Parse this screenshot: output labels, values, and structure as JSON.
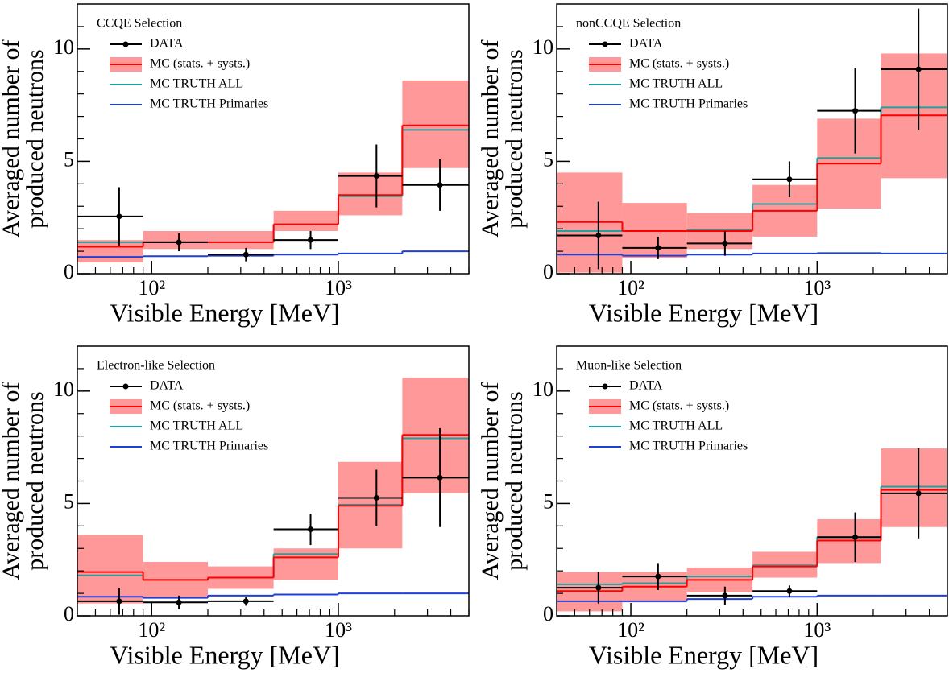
{
  "chart_data": [
    {
      "type": "step",
      "title": "CCQE Selection",
      "xlabel": "Visible Energy [MeV]",
      "ylabel": [
        "Averaged number of",
        "produced neutrons"
      ],
      "xscale": "log",
      "xlim": [
        40,
        5000
      ],
      "ylim": [
        0,
        12
      ],
      "xticks": [
        {
          "value": 100,
          "label": "10²"
        },
        {
          "value": 1000,
          "label": "10³"
        }
      ],
      "xminorticks": [
        50,
        60,
        70,
        80,
        90,
        200,
        300,
        400,
        500,
        600,
        700,
        800,
        900,
        2000,
        3000,
        4000,
        5000
      ],
      "yticks": [
        0,
        5,
        10
      ],
      "yminorticks": [
        1,
        2,
        3,
        4,
        6,
        7,
        8,
        9,
        11
      ],
      "legend": "upper left",
      "bins": [
        40,
        90,
        200,
        450,
        1000,
        2200,
        5000
      ],
      "x": [
        67,
        140,
        320,
        710,
        1600,
        3500
      ],
      "series": [
        {
          "name": "DATA",
          "color": "#000000",
          "values": [
            2.55,
            1.4,
            0.85,
            1.5,
            4.35,
            3.95
          ],
          "errors": [
            1.3,
            0.4,
            0.3,
            0.4,
            1.4,
            1.15
          ]
        },
        {
          "name": "MC (stats. + systs.)",
          "color": "#ff0000",
          "band_color": "#ff9999",
          "values": [
            1.2,
            1.4,
            1.4,
            2.2,
            3.5,
            6.6
          ],
          "band_low": [
            0.5,
            1.1,
            1.1,
            1.9,
            2.6,
            4.7
          ],
          "band_high": [
            1.5,
            1.9,
            1.9,
            2.8,
            4.5,
            8.6
          ]
        },
        {
          "name": "MC TRUTH ALL",
          "color": "#20a0a0",
          "values": [
            1.4,
            1.4,
            1.4,
            2.2,
            3.45,
            6.4
          ]
        },
        {
          "name": "MC TRUTH Primaries",
          "color": "#1f3fd8",
          "values": [
            0.75,
            0.78,
            0.8,
            0.85,
            0.9,
            1.0
          ]
        }
      ]
    },
    {
      "type": "step",
      "title": "nonCCQE Selection",
      "xlabel": "Visible Energy [MeV]",
      "ylabel": [
        "Averaged number of",
        "produced neutrons"
      ],
      "xscale": "log",
      "xlim": [
        40,
        5000
      ],
      "ylim": [
        0,
        12
      ],
      "xticks": [
        {
          "value": 100,
          "label": "10²"
        },
        {
          "value": 1000,
          "label": "10³"
        }
      ],
      "xminorticks": [
        50,
        60,
        70,
        80,
        90,
        200,
        300,
        400,
        500,
        600,
        700,
        800,
        900,
        2000,
        3000,
        4000,
        5000
      ],
      "yticks": [
        0,
        5,
        10
      ],
      "yminorticks": [
        1,
        2,
        3,
        4,
        6,
        7,
        8,
        9,
        11
      ],
      "legend": "upper left",
      "bins": [
        40,
        90,
        200,
        450,
        1000,
        2200,
        5000
      ],
      "x": [
        67,
        140,
        320,
        710,
        1600,
        3500
      ],
      "series": [
        {
          "name": "DATA",
          "color": "#000000",
          "values": [
            1.7,
            1.15,
            1.35,
            4.2,
            7.25,
            9.1
          ],
          "errors": [
            1.5,
            0.5,
            0.55,
            0.8,
            1.9,
            2.7
          ]
        },
        {
          "name": "MC (stats. + systs.)",
          "color": "#ff0000",
          "band_color": "#ff9999",
          "values": [
            2.3,
            1.9,
            1.9,
            2.8,
            4.9,
            7.05
          ],
          "band_low": [
            0.05,
            0.7,
            1.1,
            1.65,
            2.9,
            4.25
          ],
          "band_high": [
            4.5,
            3.15,
            2.7,
            3.95,
            6.9,
            9.8
          ]
        },
        {
          "name": "MC TRUTH ALL",
          "color": "#20a0a0",
          "values": [
            1.9,
            1.9,
            1.95,
            3.1,
            5.15,
            7.4
          ]
        },
        {
          "name": "MC TRUTH Primaries",
          "color": "#1f3fd8",
          "values": [
            0.85,
            0.8,
            0.85,
            0.9,
            0.92,
            0.9
          ]
        }
      ]
    },
    {
      "type": "step",
      "title": "Electron-like Selection",
      "xlabel": "Visible Energy [MeV]",
      "ylabel": [
        "Averaged number of",
        "produced neutrons"
      ],
      "xscale": "log",
      "xlim": [
        40,
        5000
      ],
      "ylim": [
        0,
        12
      ],
      "xticks": [
        {
          "value": 100,
          "label": "10²"
        },
        {
          "value": 1000,
          "label": "10³"
        }
      ],
      "xminorticks": [
        50,
        60,
        70,
        80,
        90,
        200,
        300,
        400,
        500,
        600,
        700,
        800,
        900,
        2000,
        3000,
        4000,
        5000
      ],
      "yticks": [
        0,
        5,
        10
      ],
      "yminorticks": [
        1,
        2,
        3,
        4,
        6,
        7,
        8,
        9,
        11
      ],
      "legend": "upper left",
      "bins": [
        40,
        90,
        200,
        450,
        1000,
        2200,
        5000
      ],
      "x": [
        67,
        140,
        320,
        710,
        1600,
        3500
      ],
      "series": [
        {
          "name": "DATA",
          "color": "#000000",
          "values": [
            0.65,
            0.6,
            0.65,
            3.85,
            5.25,
            6.15
          ],
          "errors": [
            0.6,
            0.3,
            0.2,
            0.7,
            1.25,
            2.2
          ]
        },
        {
          "name": "MC (stats. + systs.)",
          "color": "#ff0000",
          "band_color": "#ff9999",
          "values": [
            1.95,
            1.6,
            1.7,
            2.6,
            4.9,
            8.05
          ],
          "band_low": [
            0.55,
            0.8,
            1.2,
            1.6,
            3.0,
            5.45
          ],
          "band_high": [
            3.6,
            2.4,
            2.2,
            3.0,
            6.85,
            10.6
          ]
        },
        {
          "name": "MC TRUTH ALL",
          "color": "#20a0a0",
          "values": [
            1.8,
            1.6,
            1.7,
            2.75,
            4.95,
            7.9
          ]
        },
        {
          "name": "MC TRUTH Primaries",
          "color": "#1f3fd8",
          "values": [
            0.85,
            0.8,
            0.9,
            0.95,
            1.0,
            1.0
          ]
        }
      ]
    },
    {
      "type": "step",
      "title": "Muon-like Selection",
      "xlabel": "Visible Energy [MeV]",
      "ylabel": [
        "Averaged number of",
        "produced neutrons"
      ],
      "xscale": "log",
      "xlim": [
        40,
        5000
      ],
      "ylim": [
        0,
        12
      ],
      "xticks": [
        {
          "value": 100,
          "label": "10²"
        },
        {
          "value": 1000,
          "label": "10³"
        }
      ],
      "xminorticks": [
        50,
        60,
        70,
        80,
        90,
        200,
        300,
        400,
        500,
        600,
        700,
        800,
        900,
        2000,
        3000,
        4000,
        5000
      ],
      "yticks": [
        0,
        5,
        10
      ],
      "yminorticks": [
        1,
        2,
        3,
        4,
        6,
        7,
        8,
        9,
        11
      ],
      "legend": "upper left",
      "bins": [
        40,
        90,
        200,
        450,
        1000,
        2200,
        5000
      ],
      "x": [
        67,
        140,
        320,
        710,
        1600,
        3500
      ],
      "series": [
        {
          "name": "DATA",
          "color": "#000000",
          "values": [
            1.25,
            1.75,
            0.9,
            1.1,
            3.5,
            5.45
          ],
          "errors": [
            0.7,
            0.6,
            0.4,
            0.25,
            1.1,
            2.0
          ]
        },
        {
          "name": "MC (stats. + systs.)",
          "color": "#ff0000",
          "band_color": "#ff9999",
          "values": [
            1.1,
            1.3,
            1.6,
            2.2,
            3.35,
            5.6
          ],
          "band_low": [
            0.2,
            0.6,
            1.05,
            1.7,
            2.35,
            3.95
          ],
          "band_high": [
            1.95,
            1.95,
            2.15,
            2.85,
            4.3,
            7.45
          ]
        },
        {
          "name": "MC TRUTH ALL",
          "color": "#20a0a0",
          "values": [
            1.4,
            1.45,
            1.75,
            2.25,
            3.5,
            5.75
          ]
        },
        {
          "name": "MC TRUTH Primaries",
          "color": "#1f3fd8",
          "values": [
            0.65,
            0.65,
            0.75,
            0.85,
            0.9,
            0.9
          ]
        }
      ]
    }
  ]
}
